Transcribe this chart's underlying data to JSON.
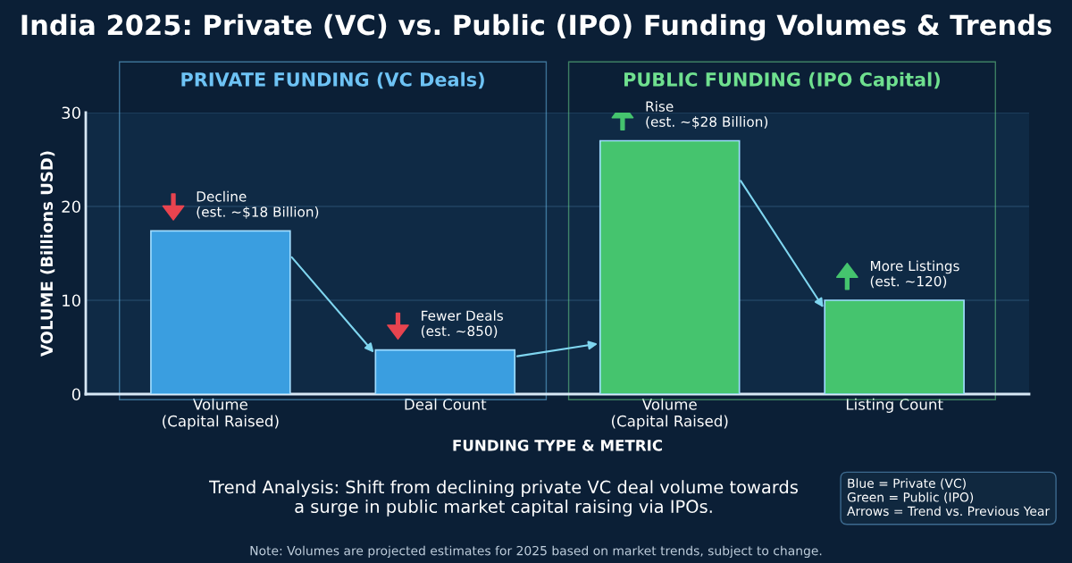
{
  "chart_data": {
    "type": "bar",
    "title": "India 2025: Private (VC) vs. Public (IPO) Funding Volumes & Trends",
    "xlabel": "FUNDING TYPE & METRIC",
    "ylabel": "VOLUME (Billions USD)",
    "categories": [
      "Volume\n(Capital Raised)",
      "Deal Count",
      "Volume\n(Capital Raised)",
      "Listing Count"
    ],
    "values": [
      17.4,
      4.7,
      27,
      10
    ],
    "colors": [
      "#3a9ee0",
      "#3a9ee0",
      "#45c46e",
      "#45c46e"
    ],
    "ylim": [
      0,
      30
    ],
    "yticks": [
      0,
      10,
      20,
      30
    ],
    "grid": "y",
    "annotations": [
      "Decline\n(est. ~$18 Billion)",
      "Fewer Deals\n(est. ~850)",
      "Rise\n(est. ~$28 Billion)",
      "More Listings\n(est. ~120)",
      "PRIVATE FUNDING (VC Deals)",
      "PUBLIC FUNDING (IPO Capital)",
      "Trend Analysis: Shift from declining private VC deal volume towards\na surge in public market capital raising via IPOs.",
      "Blue = Private (VC)\nGreen = Public (IPO)\nArrows = Trend vs. Previous Year",
      "Note: Volumes are projected estimates for 2025 based on market trends, subject to change."
    ]
  }
}
